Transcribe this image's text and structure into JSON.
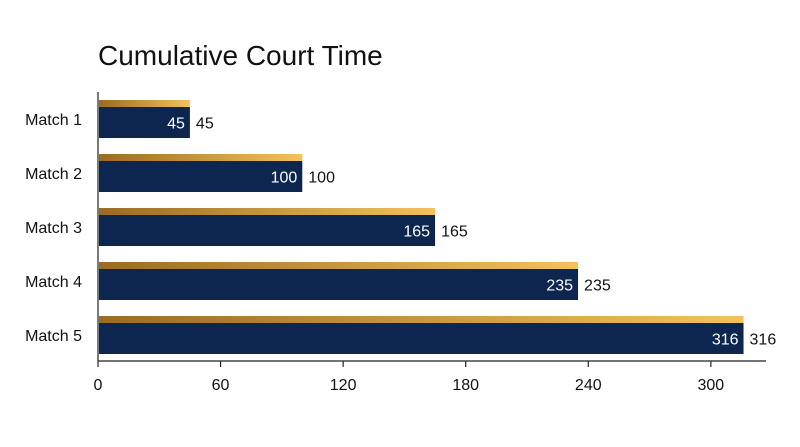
{
  "chart_data": {
    "type": "bar",
    "orientation": "horizontal",
    "title": "Cumulative Court Time",
    "xlabel": "",
    "ylabel": "",
    "categories": [
      "Match 1",
      "Match 2",
      "Match 3",
      "Match 4",
      "Match 5"
    ],
    "values": [
      45,
      100,
      165,
      235,
      316
    ],
    "xlim": [
      0,
      327
    ],
    "xticks": [
      0,
      60,
      120,
      180,
      240,
      300
    ],
    "grid": false,
    "legend": "none",
    "colors": {
      "bar": "#0d2650",
      "accent_light": "#f3c25b",
      "accent_dark": "#9b6b23",
      "inside_label": "#ffffff",
      "outside_label": "#111111",
      "axis": "#222222"
    }
  }
}
